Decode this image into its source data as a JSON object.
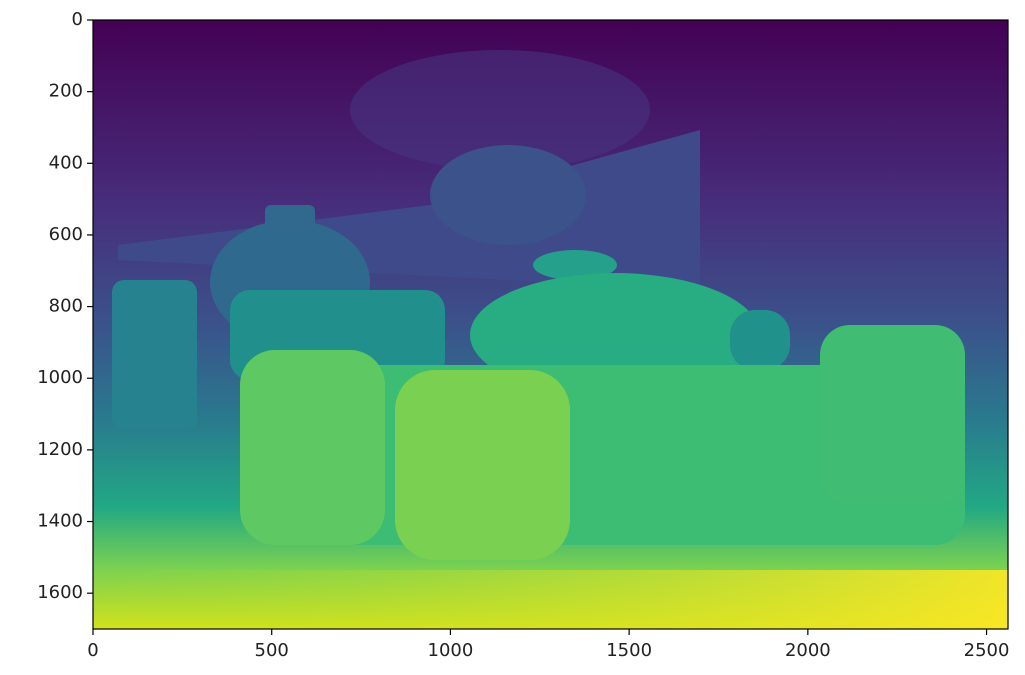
{
  "chart_data": {
    "type": "image",
    "xlim": [
      0,
      2560
    ],
    "ylim": [
      1700,
      0
    ],
    "xticks": [
      0,
      500,
      1000,
      1500,
      2000,
      2500
    ],
    "yticks": [
      0,
      200,
      400,
      600,
      800,
      1000,
      1200,
      1400,
      1600
    ],
    "colormap": "viridis",
    "grid": false
  }
}
